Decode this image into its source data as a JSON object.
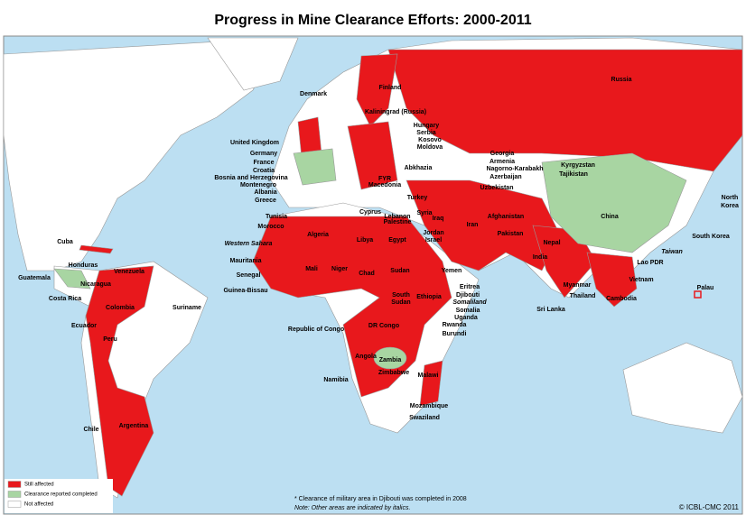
{
  "title": "Progress in Mine Clearance Efforts: 2000-2011",
  "labels": [
    "Russia",
    "Finland",
    "Denmark",
    "Kaliningrad (Russia)",
    "Hungary",
    "Serbia",
    "Kosovo",
    "Moldova",
    "United Kingdom",
    "Germany",
    "France",
    "Croatia",
    "Bosnia and Herzegovina",
    "Montenegro",
    "Albania",
    "Greece",
    "Georgia",
    "Armenia",
    "Nagorno-Karabakh",
    "Azerbaijan",
    "Abkhazia",
    "FYR",
    "Macedonia",
    "Kyrgyzstan",
    "Tajikistan",
    "Uzbekistan",
    "Turkey",
    "Tunisia",
    "Cyprus",
    "Lebanon",
    "Palestine",
    "Syria",
    "Iraq",
    "Iran",
    "Afghanistan",
    "Pakistan",
    "China",
    "North",
    "Korea",
    "South Korea",
    "Morocco",
    "Western Sahara",
    "Algeria",
    "Libya",
    "Egypt",
    "Jordan",
    "Israel",
    "Nepal",
    "India",
    "Taiwan",
    "Mauritania",
    "Senegal",
    "Mali",
    "Niger",
    "Chad",
    "Sudan",
    "Yemen",
    "Lao PDR",
    "Guinea-Bissau",
    "Eritrea",
    "Djibouti",
    "Somaliland",
    "Somalia",
    "Ethiopia",
    "Myanmar",
    "Thailand",
    "Vietnam",
    "Cambodia",
    "Palau",
    "South",
    "Sudan",
    "Uganda",
    "Sri Lanka",
    "Rwanda",
    "Burundi",
    "Republic of Congo",
    "DR Congo",
    "Angola",
    "Zambia",
    "Zimbabwe",
    "Malawi",
    "Namibia",
    "Mozambique",
    "Swaziland",
    "Cuba",
    "Honduras",
    "Guatemala",
    "Nicaragua",
    "Costa Rica",
    "Venezuela",
    "Suriname",
    "Colombia",
    "Ecuador",
    "Peru",
    "Chile",
    "Argentina"
  ],
  "legend": [
    {
      "label": "Still affected",
      "color": "#e8181c"
    },
    {
      "label": "Clearance reported completed",
      "color": "#a8d5a2"
    },
    {
      "label": "Not affected",
      "color": "#ffffff"
    }
  ],
  "footnote": "* Clearance of military area in Djibouti was completed in 2008",
  "note": "Note: Other areas are indicated by italics.",
  "credit": "© ICBL-CMC 2011"
}
